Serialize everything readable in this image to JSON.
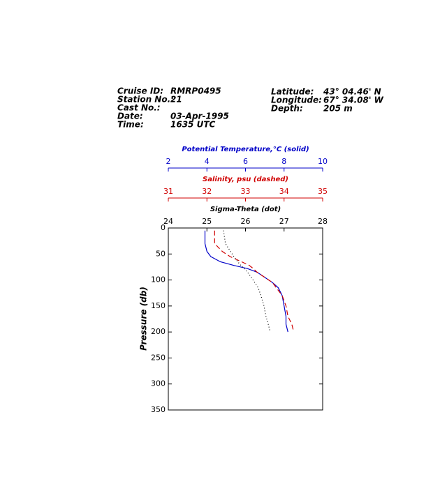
{
  "header": {
    "left": [
      {
        "label": "Cruise ID:",
        "value": "RMRP0495"
      },
      {
        "label": "Station No.:",
        "value": "21"
      },
      {
        "label": "Cast No.:",
        "value": ""
      },
      {
        "label": "Date:",
        "value": "03-Apr-1995"
      },
      {
        "label": "Time:",
        "value": "1635 UTC"
      }
    ],
    "right": [
      {
        "label": "Latitude:",
        "value": "43° 04.46' N"
      },
      {
        "label": "Longitude:",
        "value": "67° 34.08' W"
      },
      {
        "label": "Depth:",
        "value": "205 m"
      }
    ]
  },
  "chart_data": {
    "type": "line",
    "ylabel": "Pressure (db)",
    "ylim": [
      0,
      350
    ],
    "yticks": [
      0,
      50,
      100,
      150,
      200,
      250,
      300,
      350
    ],
    "y": [
      5,
      30,
      45,
      55,
      65,
      72,
      78,
      85,
      95,
      105,
      115,
      130,
      150,
      170,
      185,
      200
    ],
    "series": [
      {
        "name": "Potential Temperature,°C (solid)",
        "color": "#0000c8",
        "style": "solid",
        "xlim": [
          2,
          10
        ],
        "xticks": [
          2,
          4,
          6,
          8,
          10
        ],
        "values": [
          3.9,
          3.9,
          4.0,
          4.2,
          4.7,
          5.4,
          6.1,
          6.6,
          7.0,
          7.4,
          7.7,
          7.9,
          8.0,
          8.1,
          8.1,
          8.2
        ]
      },
      {
        "name": "Salinity, psu  (dashed)",
        "color": "#d00000",
        "style": "dashed",
        "xlim": [
          31,
          35
        ],
        "xticks": [
          31,
          32,
          33,
          34,
          35
        ],
        "values": [
          32.2,
          32.2,
          32.4,
          32.6,
          32.9,
          33.1,
          33.2,
          33.3,
          33.5,
          33.7,
          33.8,
          33.95,
          34.05,
          34.1,
          34.2,
          34.25
        ]
      },
      {
        "name": "Sigma-Theta (dot)",
        "color": "#000000",
        "style": "dotted",
        "xlim": [
          24,
          28
        ],
        "xticks": [
          24,
          25,
          26,
          27,
          28
        ],
        "values": [
          25.43,
          25.48,
          25.61,
          25.7,
          25.8,
          25.88,
          25.97,
          26.05,
          26.15,
          26.24,
          26.33,
          26.4,
          26.48,
          26.53,
          26.59,
          26.64
        ]
      }
    ]
  }
}
